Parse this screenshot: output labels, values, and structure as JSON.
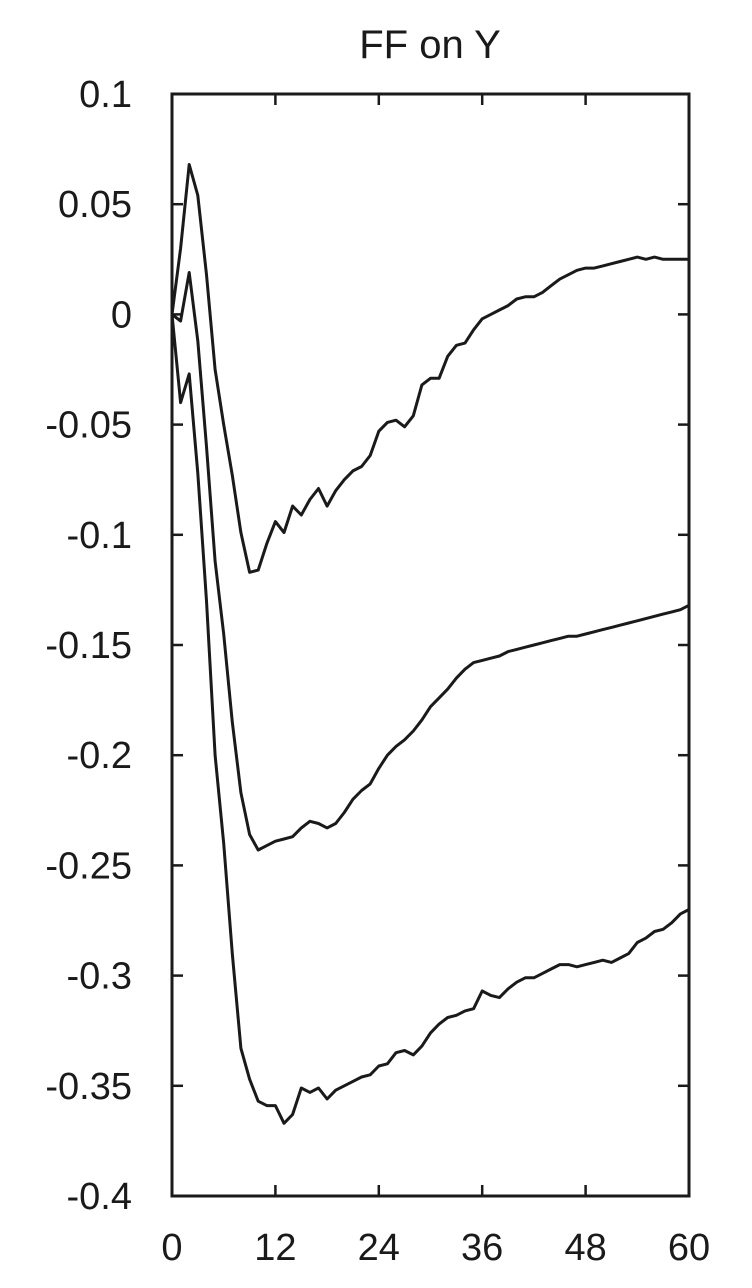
{
  "chart_data": {
    "type": "line",
    "title": "FF on Y",
    "xlabel": "",
    "ylabel": "",
    "xlim": [
      0,
      60
    ],
    "ylim": [
      -0.4,
      0.1
    ],
    "xticks": [
      0,
      12,
      24,
      36,
      48,
      60
    ],
    "xtick_labels": [
      "0",
      "12",
      "24",
      "36",
      "48",
      "60"
    ],
    "yticks": [
      0.1,
      0.05,
      0,
      -0.05,
      -0.1,
      -0.15,
      -0.2,
      -0.25,
      -0.3,
      -0.35,
      -0.4
    ],
    "ytick_labels": [
      "0.1",
      "0.05",
      "0",
      "-0.05",
      "-0.1",
      "-0.15",
      "-0.2",
      "-0.25",
      "-0.3",
      "-0.35",
      "-0.4"
    ],
    "grid": false,
    "legend": "none",
    "line_color": "#1a1a1a",
    "x": [
      0,
      1,
      2,
      3,
      4,
      5,
      6,
      7,
      8,
      9,
      10,
      11,
      12,
      13,
      14,
      15,
      16,
      17,
      18,
      19,
      20,
      21,
      22,
      23,
      24,
      25,
      26,
      27,
      28,
      29,
      30,
      31,
      32,
      33,
      34,
      35,
      36,
      37,
      38,
      39,
      40,
      41,
      42,
      43,
      44,
      45,
      46,
      47,
      48,
      49,
      50,
      51,
      52,
      53,
      54,
      55,
      56,
      57,
      58,
      59,
      60
    ],
    "series": [
      {
        "role": "upper band",
        "values": [
          0.0,
          0.03,
          0.068,
          0.054,
          0.018,
          -0.025,
          -0.05,
          -0.073,
          -0.099,
          -0.117,
          -0.116,
          -0.104,
          -0.094,
          -0.099,
          -0.087,
          -0.091,
          -0.084,
          -0.079,
          -0.087,
          -0.08,
          -0.075,
          -0.071,
          -0.069,
          -0.064,
          -0.053,
          -0.049,
          -0.048,
          -0.051,
          -0.046,
          -0.032,
          -0.029,
          -0.029,
          -0.019,
          -0.014,
          -0.013,
          -0.007,
          -0.002,
          0.0,
          0.002,
          0.004,
          0.007,
          0.008,
          0.008,
          0.01,
          0.013,
          0.016,
          0.018,
          0.02,
          0.021,
          0.021,
          0.022,
          0.023,
          0.024,
          0.025,
          0.026,
          0.025,
          0.026,
          0.025,
          0.025,
          0.025,
          0.025
        ]
      },
      {
        "role": "point estimate",
        "values": [
          0.0,
          -0.003,
          0.019,
          -0.012,
          -0.06,
          -0.112,
          -0.145,
          -0.185,
          -0.217,
          -0.236,
          -0.243,
          -0.241,
          -0.239,
          -0.238,
          -0.237,
          -0.233,
          -0.23,
          -0.231,
          -0.233,
          -0.231,
          -0.226,
          -0.22,
          -0.216,
          -0.213,
          -0.206,
          -0.2,
          -0.196,
          -0.193,
          -0.189,
          -0.184,
          -0.178,
          -0.174,
          -0.17,
          -0.165,
          -0.161,
          -0.158,
          -0.157,
          -0.156,
          -0.155,
          -0.153,
          -0.152,
          -0.151,
          -0.15,
          -0.149,
          -0.148,
          -0.147,
          -0.146,
          -0.146,
          -0.145,
          -0.144,
          -0.143,
          -0.142,
          -0.141,
          -0.14,
          -0.139,
          -0.138,
          -0.137,
          -0.136,
          -0.135,
          -0.134,
          -0.132
        ]
      },
      {
        "role": "lower band",
        "values": [
          0.0,
          -0.04,
          -0.027,
          -0.072,
          -0.13,
          -0.2,
          -0.24,
          -0.29,
          -0.333,
          -0.347,
          -0.357,
          -0.359,
          -0.359,
          -0.367,
          -0.363,
          -0.351,
          -0.353,
          -0.351,
          -0.356,
          -0.352,
          -0.35,
          -0.348,
          -0.346,
          -0.345,
          -0.341,
          -0.34,
          -0.335,
          -0.334,
          -0.336,
          -0.332,
          -0.326,
          -0.322,
          -0.319,
          -0.318,
          -0.316,
          -0.315,
          -0.307,
          -0.309,
          -0.31,
          -0.306,
          -0.303,
          -0.301,
          -0.301,
          -0.299,
          -0.297,
          -0.295,
          -0.295,
          -0.296,
          -0.295,
          -0.294,
          -0.293,
          -0.294,
          -0.292,
          -0.29,
          -0.285,
          -0.283,
          -0.28,
          -0.279,
          -0.276,
          -0.272,
          -0.27
        ]
      }
    ]
  }
}
